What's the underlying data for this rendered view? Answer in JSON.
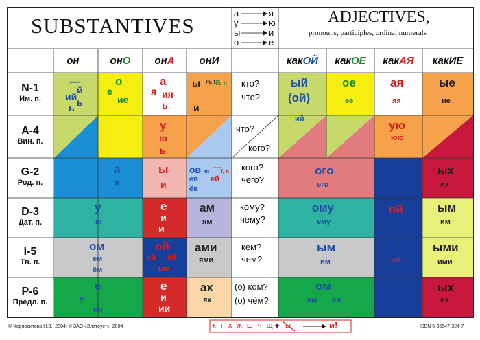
{
  "titles": {
    "substantives": "SUBSTANTIVES",
    "adjectives": "ADJECTIVES,",
    "adjectives_sub": "pronouns, participles, ordinal numerals"
  },
  "vowel_map": [
    {
      "from": "а",
      "to": "я"
    },
    {
      "from": "у",
      "to": "ю"
    },
    {
      "from": "ы",
      "to": "и"
    },
    {
      "from": "о",
      "to": "е"
    }
  ],
  "noun_headers": [
    {
      "stem": "он",
      "end": "_"
    },
    {
      "stem": "он",
      "end": "О"
    },
    {
      "stem": "он",
      "end": "А"
    },
    {
      "stem": "он",
      "end": "И"
    }
  ],
  "adj_headers": [
    {
      "stem": "как",
      "end": "ОЙ"
    },
    {
      "stem": "как",
      "end": "ОЕ"
    },
    {
      "stem": "как",
      "end": "АЯ"
    },
    {
      "stem": "как",
      "end": "ИЕ"
    }
  ],
  "cases": [
    {
      "code": "N-1",
      "ru": "Им. п."
    },
    {
      "code": "A-4",
      "ru": "Вин. п."
    },
    {
      "code": "G-2",
      "ru": "Род. п."
    },
    {
      "code": "D-3",
      "ru": "Дат. п."
    },
    {
      "code": "I-5",
      "ru": "Тв. п."
    },
    {
      "code": "P-6",
      "ru": "Предл. п."
    }
  ],
  "questions": {
    "n1": "кто?",
    "n2": "что?",
    "a1": "что?",
    "a2": "кого?",
    "g1": "кого?",
    "g2": "чего?",
    "d1": "кому?",
    "d2": "чему?",
    "i1": "кем?",
    "i2": "чем?",
    "p1": "(о) ком?",
    "p2": "(о) чём?"
  },
  "nouns": {
    "m_nom_1": "—",
    "m_nom_2": "й",
    "m_nom_3": "ь",
    "m_nom_4": "ий",
    "m_nom_5": "ь",
    "n_nom_1": "о",
    "n_nom_2": "е",
    "n_nom_3": "ие",
    "f_nom_1": "а",
    "f_nom_2": "я",
    "f_nom_3": "ия",
    "f_nom_4": "ь",
    "pl_nom_1": "ы",
    "pl_nom_2": "а",
    "pl_nom_3": "и",
    "pl_sub_mf": "m, f",
    "pl_sub_n": "n",
    "f_acc_1": "у",
    "f_acc_2": "ю",
    "f_acc_3": "ь",
    "mn_gen_1": "а",
    "mn_gen_2": "я",
    "f_gen_1": "ы",
    "f_gen_2": "и",
    "pl_gen_1": "ов",
    "pl_gen_2": "ев",
    "pl_gen_3": "ёв",
    "pl_gen_4": "—",
    "pl_gen_5": "ей",
    "pl_gen_sub_m": "m",
    "pl_gen_sub_fn": "f, n",
    "mn_dat_1": "у",
    "mn_dat_2": "ю",
    "f_dat_1": "е",
    "f_dat_2": "и",
    "f_dat_3": "и",
    "pl_dat_1": "ам",
    "pl_dat_2": "ям",
    "mn_ins_1": "ом",
    "mn_ins_2": "ем",
    "mn_ins_3": "ём",
    "f_ins_1": "ой",
    "f_ins_2": "ей",
    "f_ins_3": "ёй",
    "f_ins_4": "ью",
    "pl_ins_1": "ами",
    "pl_ins_2": "ями",
    "mn_pre_1": "е",
    "mn_pre_2": "у",
    "mn_pre_3": "ии",
    "f_pre_1": "е",
    "f_pre_2": "и",
    "f_pre_3": "ии",
    "pl_pre_1": "ах",
    "pl_pre_2": "ях"
  },
  "adjectives": {
    "m_nom_1": "ый",
    "m_nom_2": "(ой)",
    "m_nom_3": "ий",
    "n_nom_1": "ое",
    "n_nom_2": "ее",
    "f_nom_1": "ая",
    "f_nom_2": "яя",
    "f_acc_1": "ую",
    "f_acc_2": "юю",
    "pl_nom_1": "ые",
    "pl_nom_2": "ие",
    "mn_gen_1": "ого",
    "mn_gen_2": "его",
    "pl_gen_1": "ых",
    "pl_gen_2": "их",
    "mn_dat_1": "ому",
    "mn_dat_2": "ему",
    "f_obl_1": "ой",
    "f_obl_2": "ей",
    "pl_dat_1": "ым",
    "pl_dat_2": "им",
    "mn_ins_1": "ым",
    "mn_ins_2": "им",
    "pl_ins_1": "ыми",
    "pl_ins_2": "ими",
    "mn_pre_1": "ом",
    "mn_pre_2": "ем",
    "mn_pre_3": "ём",
    "pl_pre_1": "ых",
    "pl_pre_2": "их"
  },
  "footer": {
    "copyright": "© Черноситова Н.З., 2004; © ЗАО «Златоуст», 2004",
    "consonants": "к г х ж ш ч щ",
    "plus": "+",
    "crossed": "ы",
    "result": "и!",
    "isbn": "ISBN 5-86547-324-7"
  },
  "colors": {
    "yellow_green": "#c6d96a",
    "yellow": "#f5ee10",
    "blue": "#1b8fd6",
    "teal": "#2eb3a3",
    "gray": "#c9c9cb",
    "green": "#15a84a",
    "pink": "#f2b7b0",
    "red": "#d42a2a",
    "navy": "#173f99",
    "lightblue": "#a9c9ef",
    "lavender": "#b7b5dd",
    "peach": "#fbd6a8",
    "orange": "#f5a24a",
    "salmon": "#e27b7d",
    "yellowgreen2": "#e8f07a",
    "crimson": "#c8173c",
    "tan": "#f3c88e"
  }
}
